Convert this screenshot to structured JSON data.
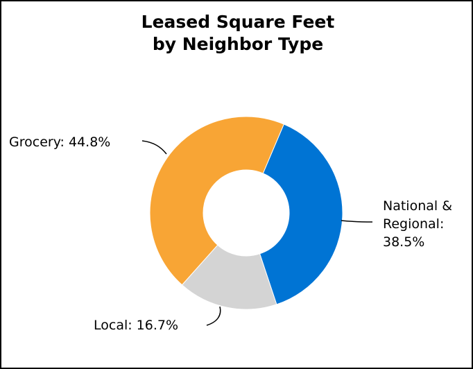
{
  "chart_data": {
    "type": "pie",
    "title_lines": [
      "Leased Square Feet",
      "by Neighbor Type"
    ],
    "slices": [
      {
        "name": "National & Regional",
        "value": 38.5,
        "color": "#0074D4",
        "label_lines": [
          "National &",
          "Regional:",
          "38.5%"
        ]
      },
      {
        "name": "Local",
        "value": 16.7,
        "color": "#D4D4D4",
        "label_lines": [
          "Local: 16.7%"
        ]
      },
      {
        "name": "Grocery",
        "value": 44.8,
        "color": "#F8A535",
        "label_lines": [
          "Grocery: 44.8%"
        ]
      }
    ],
    "donut": true,
    "legend": "none"
  }
}
